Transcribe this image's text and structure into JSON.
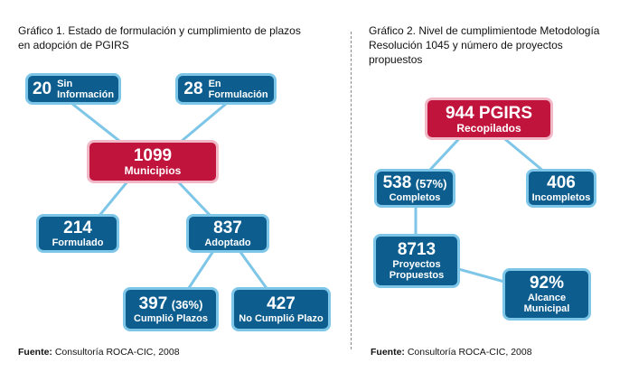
{
  "chart1": {
    "title_line1": "Gráfico 1. Estado de formulación y cumplimiento de plazos",
    "title_line2": "en adopción de PGIRS",
    "sin_info": {
      "value": "20",
      "label_line1": "Sin",
      "label_line2": "Información"
    },
    "en_form": {
      "value": "28",
      "label_line1": "En",
      "label_line2": "Formulación"
    },
    "municipios": {
      "value": "1099",
      "label": "Municipios"
    },
    "formulado": {
      "value": "214",
      "label": "Formulado"
    },
    "adoptado": {
      "value": "837",
      "label": "Adoptado"
    },
    "cumplio": {
      "value": "397",
      "pct": "(36%)",
      "label": "Cumplió Plazos"
    },
    "no_cumplio": {
      "value": "427",
      "label": "No Cumplió Plazo"
    },
    "source_bold": "Fuente:",
    "source_text": " Consultoría ROCA-CIC, 2008"
  },
  "chart2": {
    "title_line1": "Gráfico 2. Nivel de cumplimientode Metodología",
    "title_line2": "Resolución 1045 y número de proyectos",
    "title_line3": "propuestos",
    "pgirs": {
      "value": "944 PGIRS",
      "label": "Recopilados"
    },
    "completos": {
      "value": "538",
      "pct": "(57%)",
      "label": "Completos"
    },
    "incompletos": {
      "value": "406",
      "label": "Incompletos"
    },
    "proyectos": {
      "value": "8713",
      "label_line1": "Proyectos",
      "label_line2": "Propuestos"
    },
    "alcance": {
      "value": "92%",
      "label_line1": "Alcance",
      "label_line2": "Municipal"
    },
    "source_bold": "Fuente:",
    "source_text": " Consultoría ROCA-CIC, 2008"
  },
  "colors": {
    "box_fill": "#0d5e8f",
    "box_border": "#7ec6e8",
    "accent_fill": "#c0143c",
    "accent_border": "#f1b8c8",
    "link": "#7ec6e8"
  }
}
